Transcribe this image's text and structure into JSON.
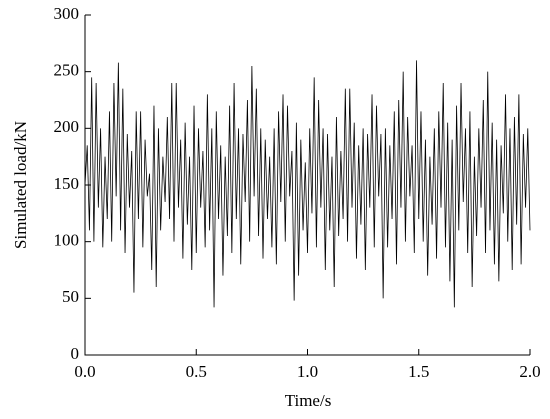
{
  "chart_data": {
    "type": "line",
    "xlabel": "Time/s",
    "ylabel": "Simulated load/kN",
    "xlim": [
      0,
      2
    ],
    "ylim": [
      0,
      300
    ],
    "xticks": [
      {
        "value": 0,
        "label": "0.0"
      },
      {
        "value": 0.5,
        "label": "0.5"
      },
      {
        "value": 1,
        "label": "1.0"
      },
      {
        "value": 1.5,
        "label": "1.5"
      },
      {
        "value": 2,
        "label": "2.0"
      }
    ],
    "yticks": [
      0,
      50,
      100,
      150,
      200,
      250,
      300
    ],
    "color": "#000000",
    "x": [
      0,
      0.01,
      0.02,
      0.03,
      0.04,
      0.05,
      0.06,
      0.07,
      0.08,
      0.09,
      0.1,
      0.11,
      0.12,
      0.13,
      0.14,
      0.15,
      0.16,
      0.17,
      0.18,
      0.19,
      0.2,
      0.21,
      0.22,
      0.23,
      0.24,
      0.25,
      0.26,
      0.27,
      0.28,
      0.29,
      0.3,
      0.31,
      0.32,
      0.33,
      0.34,
      0.35,
      0.36,
      0.37,
      0.38,
      0.39,
      0.4,
      0.41,
      0.42,
      0.43,
      0.44,
      0.45,
      0.46,
      0.47,
      0.48,
      0.49,
      0.5,
      0.51,
      0.52,
      0.53,
      0.54,
      0.55,
      0.56,
      0.57,
      0.58,
      0.59,
      0.6,
      0.61,
      0.62,
      0.63,
      0.64,
      0.65,
      0.66,
      0.67,
      0.68,
      0.69,
      0.7,
      0.71,
      0.72,
      0.73,
      0.74,
      0.75,
      0.76,
      0.77,
      0.78,
      0.79,
      0.8,
      0.81,
      0.82,
      0.83,
      0.84,
      0.85,
      0.86,
      0.87,
      0.88,
      0.89,
      0.9,
      0.91,
      0.92,
      0.93,
      0.94,
      0.95,
      0.96,
      0.97,
      0.98,
      0.99,
      1,
      1.01,
      1.02,
      1.03,
      1.04,
      1.05,
      1.06,
      1.07,
      1.08,
      1.09,
      1.1,
      1.11,
      1.12,
      1.13,
      1.14,
      1.15,
      1.16,
      1.17,
      1.18,
      1.19,
      1.2,
      1.21,
      1.22,
      1.23,
      1.24,
      1.25,
      1.26,
      1.27,
      1.28,
      1.29,
      1.3,
      1.31,
      1.32,
      1.33,
      1.34,
      1.35,
      1.36,
      1.37,
      1.38,
      1.39,
      1.4,
      1.41,
      1.42,
      1.43,
      1.44,
      1.45,
      1.46,
      1.47,
      1.48,
      1.49,
      1.5,
      1.51,
      1.52,
      1.53,
      1.54,
      1.55,
      1.56,
      1.57,
      1.58,
      1.59,
      1.6,
      1.61,
      1.62,
      1.63,
      1.64,
      1.65,
      1.66,
      1.67,
      1.68,
      1.69,
      1.7,
      1.71,
      1.72,
      1.73,
      1.74,
      1.75,
      1.76,
      1.77,
      1.78,
      1.79,
      1.8,
      1.81,
      1.82,
      1.83,
      1.84,
      1.85,
      1.86,
      1.87,
      1.88,
      1.89,
      1.9,
      1.91,
      1.92,
      1.93,
      1.94,
      1.95,
      1.96,
      1.97,
      1.98,
      1.99,
      2
    ],
    "values": [
      150,
      185,
      110,
      245,
      100,
      240,
      130,
      200,
      95,
      175,
      120,
      215,
      100,
      240,
      140,
      258,
      110,
      235,
      90,
      195,
      130,
      180,
      55,
      215,
      120,
      215,
      95,
      190,
      140,
      160,
      75,
      220,
      60,
      200,
      110,
      175,
      135,
      210,
      120,
      240,
      100,
      240,
      130,
      190,
      85,
      205,
      115,
      175,
      75,
      220,
      90,
      200,
      130,
      180,
      95,
      230,
      110,
      200,
      42,
      215,
      120,
      185,
      70,
      175,
      105,
      220,
      90,
      240,
      120,
      200,
      80,
      195,
      135,
      225,
      100,
      255,
      140,
      235,
      105,
      200,
      85,
      190,
      120,
      175,
      95,
      200,
      80,
      215,
      135,
      230,
      100,
      220,
      140,
      180,
      48,
      205,
      70,
      190,
      110,
      170,
      90,
      200,
      125,
      245,
      95,
      225,
      130,
      200,
      75,
      195,
      110,
      175,
      60,
      210,
      105,
      180,
      120,
      235,
      100,
      235,
      130,
      205,
      85,
      185,
      115,
      200,
      75,
      195,
      130,
      230,
      95,
      220,
      140,
      195,
      50,
      200,
      95,
      185,
      120,
      215,
      80,
      225,
      130,
      250,
      100,
      210,
      140,
      185,
      90,
      260,
      120,
      215,
      100,
      190,
      70,
      175,
      115,
      200,
      85,
      215,
      130,
      240,
      95,
      205,
      65,
      190,
      42,
      220,
      110,
      240,
      135,
      200,
      90,
      215,
      60,
      175,
      105,
      200,
      130,
      225,
      90,
      250,
      110,
      205,
      80,
      190,
      65,
      185,
      125,
      230,
      100,
      200,
      75,
      210,
      115,
      230,
      80,
      195,
      130,
      200,
      110
    ]
  }
}
